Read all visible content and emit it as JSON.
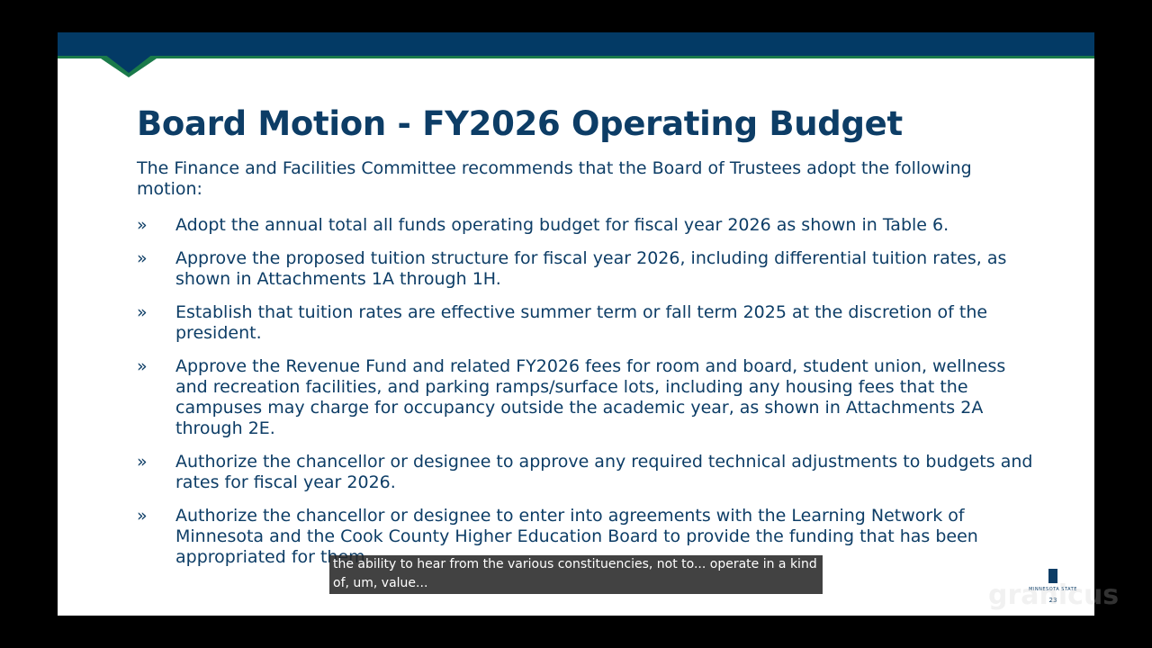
{
  "slide": {
    "title": "Board Motion - FY2026 Operating Budget",
    "intro": "The Finance and Facilities Committee recommends that the Board of Trustees adopt the following motion:",
    "bullet_mark": "»",
    "bullets": [
      "Adopt the annual total all funds operating budget for fiscal year 2026 as shown in Table 6.",
      "Approve the proposed tuition structure for fiscal year 2026, including differential tuition rates, as shown in Attachments 1A through 1H.",
      "Establish that tuition rates are effective summer term or fall term 2025 at the discretion of the president.",
      "Approve the Revenue Fund and related FY2026 fees for room and board, student union, wellness and recreation facilities, and parking ramps/surface lots, including any housing fees that the campuses may charge for occupancy outside the academic year, as shown in Attachments 2A through 2E.",
      "Authorize the chancellor or designee to approve any required technical adjustments to budgets and rates for fiscal year 2026.",
      "Authorize the chancellor or designee to enter into agreements with the Learning Network of Minnesota and the Cook County Higher Education Board to provide the funding that has been appropriated for them."
    ],
    "logo_text": "MINNESOTA STATE",
    "page_number": "23",
    "colors": {
      "navy": "#033a65",
      "green": "#1a7a4a",
      "text": "#0d3d66"
    }
  },
  "caption": {
    "text": "the ability to hear from the various constituencies, not to... operate in a kind of, um, value..."
  },
  "watermark": "granicus"
}
